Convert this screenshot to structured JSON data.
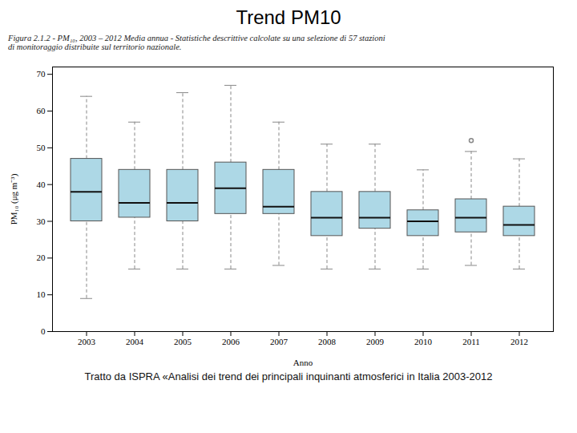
{
  "chart_data": {
    "type": "box",
    "title": "Trend PM10",
    "subtitle": "Figura 2.1.2 - PM₁₀, 2003 – 2012  Media annua - Statistiche descrittive calcolate su una selezione di 57 stazioni\ndi monitoraggio distribuite sul territorio nazionale.",
    "caption": "Tratto da ISPRA «Analisi dei trend dei principali inquinanti atmosferici in Italia 2003-2012",
    "xlabel": "Anno",
    "ylabel": "PM₁₀ (μg m⁻³)",
    "categories": [
      "2003",
      "2004",
      "2005",
      "2006",
      "2007",
      "2008",
      "2009",
      "2010",
      "2011",
      "2012"
    ],
    "whislo": [
      9,
      17,
      17,
      17,
      18,
      17,
      17,
      17,
      18,
      17
    ],
    "q1": [
      30,
      31,
      30,
      32,
      32,
      26,
      28,
      26,
      27,
      26
    ],
    "med": [
      38,
      35,
      35,
      39,
      34,
      31,
      31,
      30,
      31,
      29
    ],
    "q3": [
      47,
      44,
      44,
      46,
      44,
      38,
      38,
      33,
      36,
      34
    ],
    "whishi": [
      64,
      57,
      65,
      67,
      57,
      51,
      51,
      44,
      49,
      47
    ],
    "fliers": [
      [],
      [],
      [],
      [],
      [],
      [],
      [],
      [],
      [
        52
      ],
      []
    ],
    "color": "#add8e6",
    "ylim": [
      0,
      72
    ],
    "yticks": [
      0,
      10,
      20,
      30,
      40,
      50,
      60,
      70
    ],
    "grid": false
  }
}
